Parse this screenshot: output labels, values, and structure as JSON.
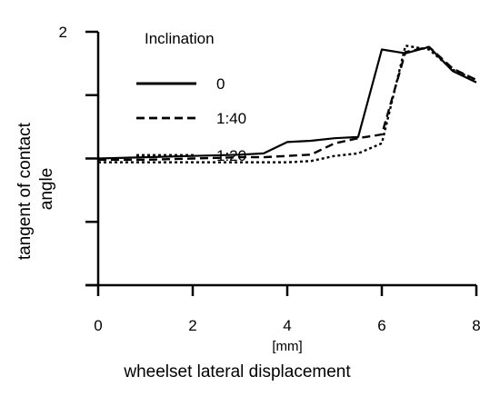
{
  "chart_data": {
    "type": "line",
    "xlabel": "wheelset lateral displacement",
    "xunit": "[mm]",
    "ylabel": "tangent of contact angle",
    "xlim": [
      0,
      8
    ],
    "ylim": [
      0,
      2
    ],
    "x_ticks": [
      0,
      2,
      4,
      6,
      8
    ],
    "y_ticks": [
      0,
      0.5,
      1,
      1.5,
      2
    ],
    "y_tick_labels": [
      "",
      "",
      "",
      "",
      "2"
    ],
    "grid": false,
    "legend": {
      "title": "Inclination",
      "placement": "top-left"
    },
    "series": [
      {
        "name": "0",
        "style": "solid",
        "color": "#000000",
        "x": [
          0,
          1,
          2,
          3,
          3.5,
          4,
          4.5,
          5,
          5.5,
          6,
          6.5,
          7,
          7.5,
          8
        ],
        "y": [
          1.0,
          1.01,
          1.02,
          1.03,
          1.04,
          1.13,
          1.14,
          1.16,
          1.17,
          1.86,
          1.83,
          1.88,
          1.69,
          1.6
        ]
      },
      {
        "name": "1:40",
        "style": "dashed",
        "color": "#000000",
        "x": [
          0,
          1,
          2,
          3,
          3.5,
          4,
          4.5,
          5,
          5.5,
          6,
          6.5,
          7,
          7.5,
          8
        ],
        "y": [
          0.99,
          0.99,
          1.0,
          1.01,
          1.01,
          1.02,
          1.03,
          1.12,
          1.16,
          1.19,
          1.84,
          1.88,
          1.71,
          1.62
        ]
      },
      {
        "name": "1:20",
        "style": "dotted",
        "color": "#000000",
        "x": [
          0,
          1,
          2,
          3,
          3.5,
          4,
          4.5,
          5,
          5.5,
          6,
          6.5,
          7,
          7.5,
          8
        ],
        "y": [
          0.97,
          0.97,
          0.97,
          0.97,
          0.97,
          0.97,
          0.98,
          1.02,
          1.04,
          1.12,
          1.89,
          1.86,
          1.7,
          1.62
        ]
      }
    ]
  }
}
